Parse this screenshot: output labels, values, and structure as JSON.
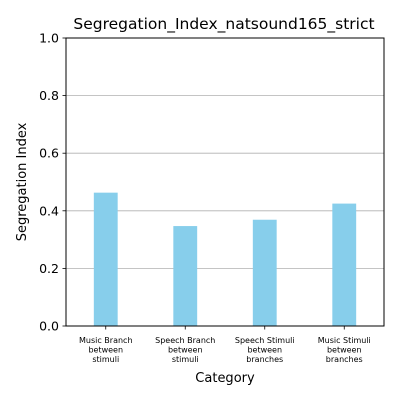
{
  "chart_data": {
    "type": "bar",
    "title": "Segregation_Index_natsound165_strict",
    "xlabel": "Category",
    "ylabel": "Segregation Index",
    "ylim": [
      0,
      1.0
    ],
    "yticks": [
      "0.0",
      "0.2",
      "0.4",
      "0.6",
      "0.8",
      "1.0"
    ],
    "grid": "y",
    "categories": [
      [
        "Music Branch",
        "between",
        "stimuli"
      ],
      [
        "Speech Branch",
        "between",
        "stimuli"
      ],
      [
        "Speech Stimuli",
        "between",
        "branches"
      ],
      [
        "Music Stimuli",
        "between",
        "branches"
      ]
    ],
    "values": [
      0.463,
      0.347,
      0.369,
      0.425
    ],
    "colors": {
      "bar": "#87ceeb",
      "grid": "#b0b0b0",
      "axis": "#000000"
    }
  }
}
